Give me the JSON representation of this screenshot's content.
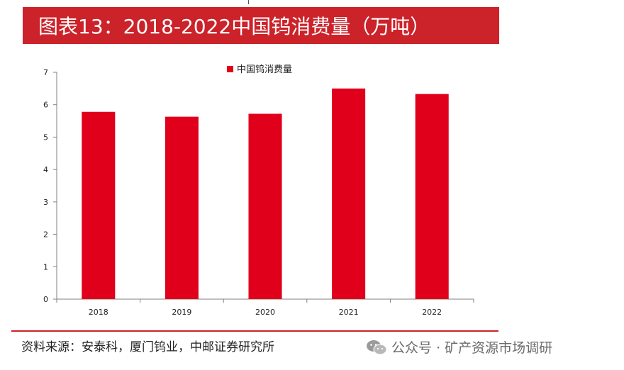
{
  "title": "图表13：2018-2022中国钨消费量（万吨）",
  "source": "资料来源：安泰科，厦门钨业，中邮证券研究所",
  "watermark": "公众号 · 矿产资源市场调研",
  "colors": {
    "accent": "#cc2229",
    "bar": "#e0001b"
  },
  "chart_data": {
    "type": "bar",
    "categories": [
      "2018",
      "2019",
      "2020",
      "2021",
      "2022"
    ],
    "series": [
      {
        "name": "中国钨消费量",
        "values": [
          5.78,
          5.63,
          5.72,
          6.5,
          6.33
        ]
      }
    ],
    "ylim": [
      0,
      7
    ],
    "yticks": [
      0,
      1,
      2,
      3,
      4,
      5,
      6,
      7
    ],
    "legend": "top-center",
    "grid": false
  }
}
